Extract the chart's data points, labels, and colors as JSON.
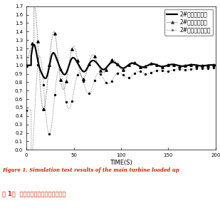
{
  "title_en": "Figure 1. Simulation test results of the main turbine loaded up",
  "title_cn": "图 1．  主机升负荷时的仿真试验结果",
  "xlabel": "TIME(S)",
  "xlim": [
    0,
    200
  ],
  "ylim": [
    0.0,
    1.7
  ],
  "yticks": [
    0.0,
    0.1,
    0.2,
    0.3,
    0.4,
    0.5,
    0.6,
    0.7,
    0.8,
    0.9,
    1.0,
    1.1,
    1.2,
    1.3,
    1.4,
    1.5,
    1.6,
    1.7
  ],
  "xticks": [
    0,
    50,
    100,
    150,
    200
  ],
  "legend": [
    "2#锅炉汽包水位",
    "2#锅炉给水压差",
    "2#锅炉上水阀开度"
  ],
  "background": "#ffffff",
  "line1_color": "black",
  "line2_color": "#555555",
  "line3_color": "#888888"
}
